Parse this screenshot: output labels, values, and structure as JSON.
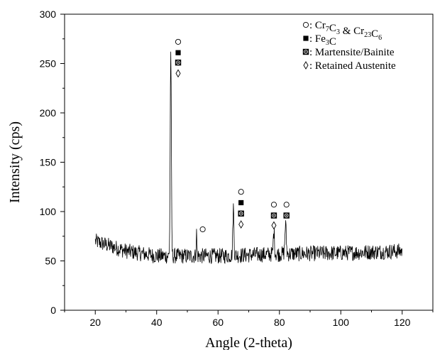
{
  "chart_data": {
    "type": "line",
    "xlabel": "Angle (2-theta)",
    "ylabel": "Intensity (cps)",
    "xlim": [
      10,
      130
    ],
    "ylim": [
      0,
      300
    ],
    "xticks": [
      20,
      40,
      60,
      80,
      100,
      120
    ],
    "yticks": [
      0,
      50,
      100,
      150,
      200,
      250,
      300
    ],
    "grid": false,
    "legend_position": "top-right",
    "legend": [
      {
        "symbol": "open-circle",
        "label": ": Cr7C3 & Cr23C6",
        "parts": [
          {
            "t": ": Cr"
          },
          {
            "t": "7",
            "sub": true
          },
          {
            "t": "C"
          },
          {
            "t": "3",
            "sub": true
          },
          {
            "t": " & Cr"
          },
          {
            "t": "23",
            "sub": true
          },
          {
            "t": "C"
          },
          {
            "t": "6",
            "sub": true
          }
        ]
      },
      {
        "symbol": "filled-square",
        "label": ": Fe3C",
        "parts": [
          {
            "t": ": Fe"
          },
          {
            "t": "3",
            "sub": true
          },
          {
            "t": "C"
          }
        ]
      },
      {
        "symbol": "dotted-square",
        "label": ": Martensite/Bainite",
        "parts": [
          {
            "t": ": Martensite/Bainite"
          }
        ]
      },
      {
        "symbol": "open-diamond",
        "label": ": Retained Austenite",
        "parts": [
          {
            "t": ": Retained Austenite"
          }
        ]
      }
    ],
    "background": {
      "start": 20,
      "end": 120,
      "baseline": [
        [
          20,
          70
        ],
        [
          30,
          60
        ],
        [
          40,
          55
        ],
        [
          50,
          55
        ],
        [
          60,
          55
        ],
        [
          80,
          57
        ],
        [
          100,
          58
        ],
        [
          120,
          60
        ]
      ],
      "noise": 8
    },
    "peaks": [
      {
        "x": 44.6,
        "height": 265,
        "width": 0.18
      },
      {
        "x": 53.0,
        "height": 78,
        "width": 0.12
      },
      {
        "x": 65.0,
        "height": 105,
        "width": 0.18
      },
      {
        "x": 78.2,
        "height": 80,
        "width": 0.2
      },
      {
        "x": 82.0,
        "height": 87,
        "width": 0.22
      }
    ],
    "phase_markers": [
      {
        "x": 47,
        "y": 272,
        "symbol": "open-circle"
      },
      {
        "x": 47,
        "y": 261,
        "symbol": "filled-square"
      },
      {
        "x": 47,
        "y": 251,
        "symbol": "dotted-square"
      },
      {
        "x": 47,
        "y": 240,
        "symbol": "open-diamond"
      },
      {
        "x": 55,
        "y": 82,
        "symbol": "open-circle"
      },
      {
        "x": 67.5,
        "y": 120,
        "symbol": "open-circle"
      },
      {
        "x": 67.5,
        "y": 109,
        "symbol": "filled-square"
      },
      {
        "x": 67.5,
        "y": 98,
        "symbol": "dotted-square"
      },
      {
        "x": 67.5,
        "y": 87,
        "symbol": "open-diamond"
      },
      {
        "x": 78.2,
        "y": 107,
        "symbol": "open-circle"
      },
      {
        "x": 78.2,
        "y": 96,
        "symbol": "dotted-square"
      },
      {
        "x": 78.2,
        "y": 86,
        "symbol": "open-diamond"
      },
      {
        "x": 82.3,
        "y": 107,
        "symbol": "open-circle"
      },
      {
        "x": 82.3,
        "y": 96,
        "symbol": "dotted-square"
      }
    ]
  }
}
